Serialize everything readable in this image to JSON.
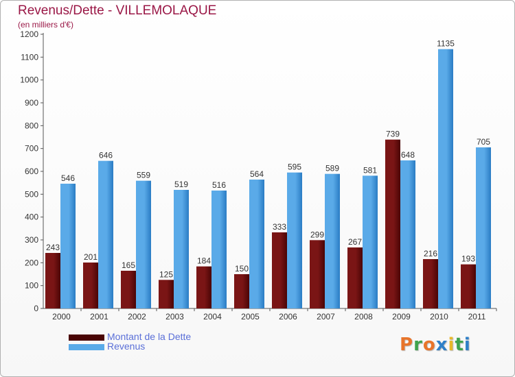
{
  "header": {
    "title": "Revenus/Dette - VILLEMOLAQUE",
    "subtitle": "(en milliers d'€)"
  },
  "logo": {
    "text": "Proxiti"
  },
  "colors": {
    "debt": "#7a1515",
    "debt_dark": "#4a0505",
    "revenue": "#5aaae8",
    "revenue_dark": "#2a7cc4",
    "title": "#9a1746",
    "legend_text": "#5a6fd8",
    "logo": [
      "#e8742a",
      "#3fa34d",
      "#e8742a",
      "#2f80c8",
      "#e8b82a",
      "#3fa34d",
      "#2f80c8"
    ]
  },
  "chart_data": {
    "type": "bar",
    "title": "Revenus/Dette - VILLEMOLAQUE",
    "ylabel": "(en milliers d'€)",
    "xlabel": "",
    "ylim": [
      0,
      1200
    ],
    "ytick_step": 100,
    "grid": false,
    "legend_position": "bottom-left",
    "categories": [
      "2000",
      "2001",
      "2002",
      "2003",
      "2004",
      "2005",
      "2006",
      "2007",
      "2008",
      "2009",
      "2010",
      "2011"
    ],
    "series": [
      {
        "name": "Montant de la Dette",
        "values": [
          243,
          201,
          165,
          125,
          184,
          150,
          333,
          299,
          267,
          739,
          216,
          193
        ]
      },
      {
        "name": "Revenus",
        "values": [
          546,
          646,
          559,
          519,
          516,
          564,
          595,
          589,
          581,
          648,
          1135,
          705
        ]
      }
    ]
  }
}
